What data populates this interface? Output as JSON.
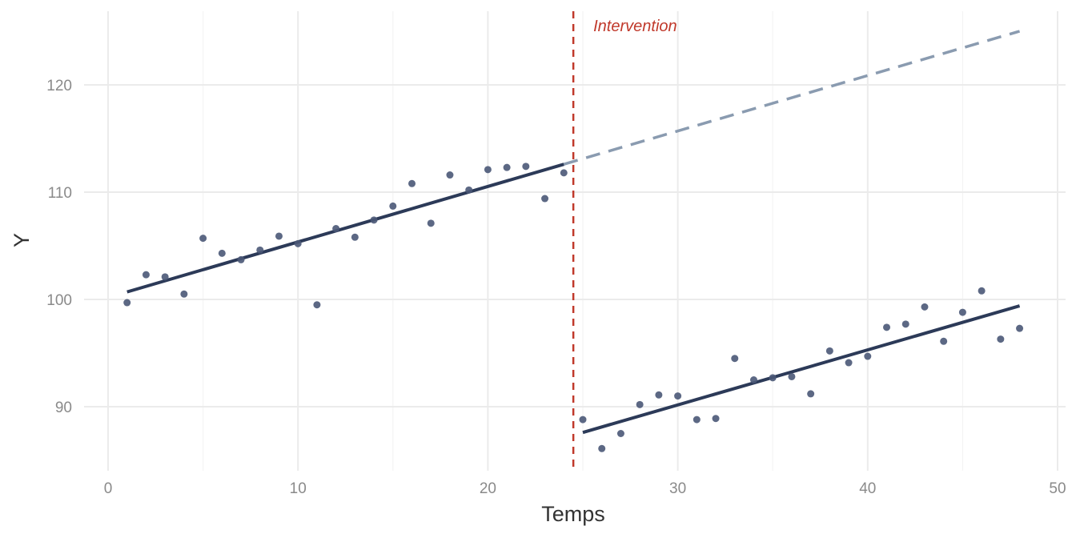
{
  "chart_data": {
    "type": "scatter",
    "title": "",
    "xlabel": "Temps",
    "ylabel": "Y",
    "xlim": [
      0,
      50
    ],
    "ylim": [
      85,
      127
    ],
    "x_ticks": [
      0,
      10,
      20,
      30,
      40,
      50
    ],
    "x_tick_labels": [
      "0",
      "10",
      "20",
      "30",
      "40",
      "50"
    ],
    "y_ticks": [
      90,
      100,
      110,
      120
    ],
    "y_tick_labels": [
      "90",
      "100",
      "110",
      "120"
    ],
    "grid": true,
    "points": [
      {
        "x": 1,
        "y": 99.7
      },
      {
        "x": 2,
        "y": 102.3
      },
      {
        "x": 3,
        "y": 102.1
      },
      {
        "x": 4,
        "y": 100.5
      },
      {
        "x": 5,
        "y": 105.7
      },
      {
        "x": 6,
        "y": 104.3
      },
      {
        "x": 7,
        "y": 103.7
      },
      {
        "x": 8,
        "y": 104.6
      },
      {
        "x": 9,
        "y": 105.9
      },
      {
        "x": 10,
        "y": 105.2
      },
      {
        "x": 11,
        "y": 99.5
      },
      {
        "x": 12,
        "y": 106.6
      },
      {
        "x": 13,
        "y": 105.8
      },
      {
        "x": 14,
        "y": 107.4
      },
      {
        "x": 15,
        "y": 108.7
      },
      {
        "x": 16,
        "y": 110.8
      },
      {
        "x": 17,
        "y": 107.1
      },
      {
        "x": 18,
        "y": 111.6
      },
      {
        "x": 19,
        "y": 110.2
      },
      {
        "x": 20,
        "y": 112.1
      },
      {
        "x": 21,
        "y": 112.3
      },
      {
        "x": 22,
        "y": 112.4
      },
      {
        "x": 23,
        "y": 109.4
      },
      {
        "x": 24,
        "y": 111.8
      },
      {
        "x": 25,
        "y": 88.8
      },
      {
        "x": 26,
        "y": 86.1
      },
      {
        "x": 27,
        "y": 87.5
      },
      {
        "x": 28,
        "y": 90.2
      },
      {
        "x": 29,
        "y": 91.1
      },
      {
        "x": 30,
        "y": 91.0
      },
      {
        "x": 31,
        "y": 88.8
      },
      {
        "x": 32,
        "y": 88.9
      },
      {
        "x": 33,
        "y": 94.5
      },
      {
        "x": 34,
        "y": 92.5
      },
      {
        "x": 35,
        "y": 92.7
      },
      {
        "x": 36,
        "y": 92.8
      },
      {
        "x": 37,
        "y": 91.2
      },
      {
        "x": 38,
        "y": 95.2
      },
      {
        "x": 39,
        "y": 94.1
      },
      {
        "x": 40,
        "y": 94.7
      },
      {
        "x": 41,
        "y": 97.4
      },
      {
        "x": 42,
        "y": 97.7
      },
      {
        "x": 43,
        "y": 99.3
      },
      {
        "x": 44,
        "y": 96.1
      },
      {
        "x": 45,
        "y": 98.8
      },
      {
        "x": 46,
        "y": 100.8
      },
      {
        "x": 47,
        "y": 96.3
      },
      {
        "x": 48,
        "y": 97.3
      }
    ],
    "trend_lines": [
      {
        "name": "pre-intervention-fit",
        "x": [
          1,
          24
        ],
        "y": [
          100.7,
          112.6
        ],
        "color": "#2c3a58",
        "dashed": false
      },
      {
        "name": "post-intervention-fit",
        "x": [
          25,
          48
        ],
        "y": [
          87.6,
          99.4
        ],
        "color": "#2c3a58",
        "dashed": false
      },
      {
        "name": "counterfactual",
        "x": [
          24,
          48
        ],
        "y": [
          112.6,
          125.0
        ],
        "color": "#8a9bb0",
        "dashed": true
      }
    ],
    "vertical_lines": [
      {
        "x": 24.5,
        "label": "Intervention",
        "color": "#c0392b"
      }
    ],
    "point_color": "#4a5877"
  }
}
